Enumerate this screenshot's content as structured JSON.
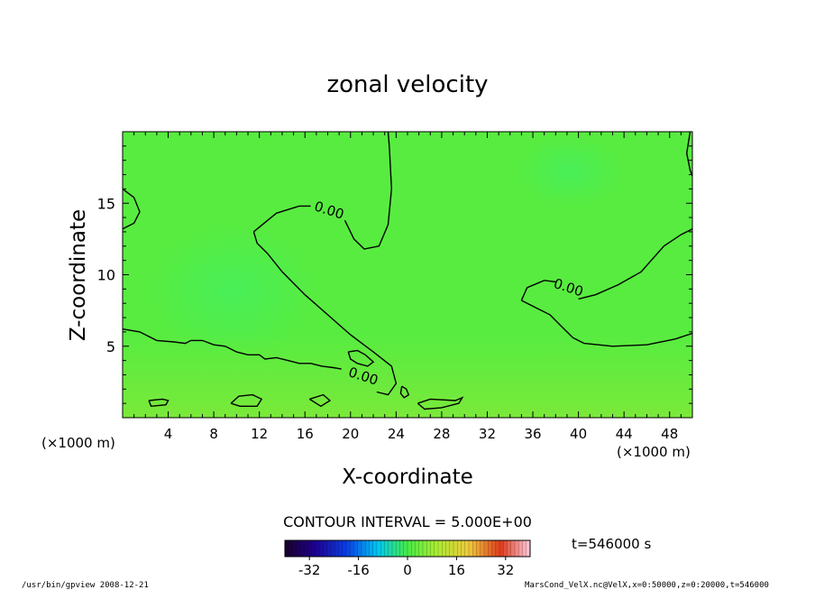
{
  "chart_data": {
    "type": "heatmap",
    "title": "zonal velocity",
    "xlabel": "X-coordinate",
    "ylabel": "Z-coordinate",
    "x_unit": "(×1000 m)",
    "y_unit": "(×1000 m)",
    "xlim": [
      0,
      50
    ],
    "ylim": [
      0,
      20
    ],
    "x_ticks": [
      4,
      8,
      12,
      16,
      20,
      24,
      28,
      32,
      36,
      40,
      44,
      48
    ],
    "y_ticks": [
      5,
      10,
      15
    ],
    "contour_interval_label": "CONTOUR INTERVAL = 5.000E+00",
    "time_label": "t=546000 s",
    "colorbar": {
      "ticks": [
        -32,
        -16,
        0,
        16,
        32
      ],
      "range": [
        -40,
        40
      ]
    },
    "contour_labels": [
      {
        "text": "0.00",
        "x": 18.0,
        "z": 14.2
      },
      {
        "text": "0.00",
        "x": 39.0,
        "z": 8.8
      },
      {
        "text": "0.00",
        "x": 21.0,
        "z": 2.6
      }
    ],
    "contours": [
      [
        [
          0,
          16.0
        ],
        [
          1.0,
          15.4
        ],
        [
          1.5,
          14.4
        ],
        [
          1.0,
          13.6
        ],
        [
          0,
          13.2
        ]
      ],
      [
        [
          11.5,
          13.0
        ],
        [
          13.5,
          14.3
        ],
        [
          15.5,
          14.8
        ],
        [
          16.5,
          14.8
        ]
      ],
      [
        [
          19.5,
          13.8
        ],
        [
          20.3,
          12.5
        ],
        [
          21.2,
          11.8
        ],
        [
          22.5,
          12.0
        ],
        [
          23.3,
          13.5
        ],
        [
          23.6,
          16.0
        ],
        [
          23.4,
          19.0
        ],
        [
          23.3,
          20.0
        ]
      ],
      [
        [
          11.5,
          13.0
        ],
        [
          11.8,
          12.2
        ],
        [
          12.7,
          11.5
        ],
        [
          14.0,
          10.2
        ],
        [
          16.0,
          8.6
        ],
        [
          18.0,
          7.2
        ],
        [
          20.0,
          5.8
        ],
        [
          22.0,
          4.6
        ],
        [
          23.6,
          3.6
        ],
        [
          24.0,
          2.4
        ],
        [
          23.3,
          1.6
        ],
        [
          22.3,
          1.8
        ]
      ],
      [
        [
          0,
          6.2
        ],
        [
          1.5,
          6.0
        ],
        [
          3.0,
          5.4
        ],
        [
          4.5,
          5.3
        ],
        [
          5.5,
          5.2
        ],
        [
          6.0,
          5.4
        ],
        [
          7.0,
          5.4
        ],
        [
          8.0,
          5.1
        ],
        [
          9.0,
          5.0
        ],
        [
          10.0,
          4.6
        ],
        [
          11.0,
          4.4
        ],
        [
          12.0,
          4.4
        ],
        [
          12.5,
          4.1
        ],
        [
          13.5,
          4.2
        ],
        [
          14.5,
          4.0
        ],
        [
          15.5,
          3.8
        ],
        [
          16.5,
          3.8
        ],
        [
          17.5,
          3.6
        ],
        [
          18.5,
          3.5
        ],
        [
          19.2,
          3.4
        ]
      ],
      [
        [
          19.8,
          4.6
        ],
        [
          20.6,
          4.7
        ],
        [
          21.3,
          4.4
        ],
        [
          22.0,
          3.9
        ],
        [
          21.5,
          3.6
        ],
        [
          20.6,
          3.8
        ],
        [
          20.0,
          4.1
        ],
        [
          19.8,
          4.6
        ]
      ],
      [
        [
          24.5,
          2.2
        ],
        [
          24.9,
          2.0
        ],
        [
          25.1,
          1.6
        ],
        [
          24.7,
          1.4
        ],
        [
          24.4,
          1.7
        ],
        [
          24.5,
          2.2
        ]
      ],
      [
        [
          35.0,
          8.2
        ],
        [
          35.5,
          9.1
        ],
        [
          37.0,
          9.6
        ],
        [
          38.0,
          9.5
        ]
      ],
      [
        [
          40.0,
          8.3
        ],
        [
          41.5,
          8.6
        ],
        [
          43.5,
          9.3
        ],
        [
          45.5,
          10.2
        ],
        [
          47.5,
          12.0
        ],
        [
          49.0,
          12.8
        ],
        [
          50.0,
          13.2
        ]
      ],
      [
        [
          35.0,
          8.2
        ],
        [
          36.0,
          7.8
        ],
        [
          37.5,
          7.2
        ],
        [
          38.5,
          6.4
        ],
        [
          39.5,
          5.6
        ],
        [
          40.5,
          5.2
        ],
        [
          43.0,
          5.0
        ],
        [
          46.0,
          5.1
        ],
        [
          48.5,
          5.5
        ],
        [
          50.0,
          5.9
        ]
      ],
      [
        [
          49.8,
          20.0
        ],
        [
          49.5,
          18.5
        ],
        [
          49.8,
          17.3
        ],
        [
          50.0,
          16.9
        ]
      ],
      [
        [
          2.3,
          1.2
        ],
        [
          3.5,
          1.3
        ],
        [
          4.0,
          1.2
        ],
        [
          3.8,
          0.9
        ],
        [
          2.5,
          0.8
        ],
        [
          2.3,
          1.2
        ]
      ],
      [
        [
          9.5,
          1.0
        ],
        [
          10.2,
          1.5
        ],
        [
          11.4,
          1.6
        ],
        [
          12.2,
          1.3
        ],
        [
          11.8,
          0.8
        ],
        [
          10.3,
          0.8
        ],
        [
          9.5,
          1.0
        ]
      ],
      [
        [
          16.4,
          1.3
        ],
        [
          17.6,
          1.6
        ],
        [
          18.2,
          1.2
        ],
        [
          17.4,
          0.8
        ],
        [
          16.4,
          1.3
        ]
      ],
      [
        [
          25.9,
          1.0
        ],
        [
          27.0,
          1.3
        ],
        [
          29.2,
          1.2
        ],
        [
          29.8,
          1.4
        ],
        [
          29.5,
          1.0
        ],
        [
          28.0,
          0.7
        ],
        [
          26.5,
          0.6
        ],
        [
          25.9,
          1.0
        ]
      ]
    ]
  },
  "footer": {
    "left": "/usr/bin/gpview   2008-12-21",
    "right": "MarsCond_VelX.nc@VelX,x=0:50000,z=0:20000,t=546000"
  }
}
